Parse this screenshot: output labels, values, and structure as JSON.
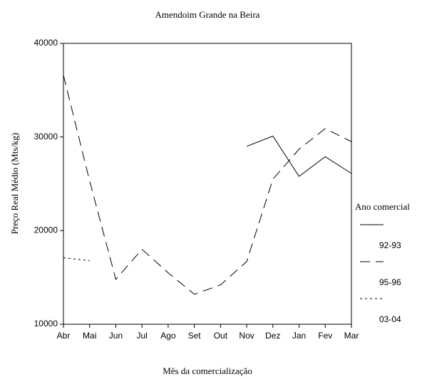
{
  "chart_data": {
    "type": "line",
    "title": "Amendoim Grande na Beira",
    "x_label": "Mês da comercialização",
    "y_label": "Preço Real Médio (Mts/kg)",
    "categories": [
      "Abr",
      "Mai",
      "Jun",
      "Jul",
      "Ago",
      "Set",
      "Out",
      "Nov",
      "Dez",
      "Jan",
      "Fev",
      "Mar"
    ],
    "ylim": [
      10000,
      40000
    ],
    "yticks": [
      10000,
      20000,
      30000,
      40000
    ],
    "legend_title": "Ano comercial",
    "legend_position": "right",
    "series": [
      {
        "name": "92-93",
        "color": "#000000",
        "dash": "solid",
        "values": [
          null,
          null,
          null,
          null,
          null,
          null,
          null,
          29000,
          30100,
          25800,
          27900,
          26100
        ]
      },
      {
        "name": "95-96",
        "color": "#000000",
        "dash": "dashed",
        "values": [
          36600,
          25300,
          14800,
          18000,
          15500,
          13200,
          14200,
          16700,
          25500,
          28700,
          30900,
          29500
        ]
      },
      {
        "name": "03-04",
        "color": "#000000",
        "dash": "dotted",
        "values": [
          17100,
          16800,
          null,
          null,
          null,
          null,
          null,
          null,
          null,
          null,
          null,
          null
        ]
      }
    ]
  }
}
